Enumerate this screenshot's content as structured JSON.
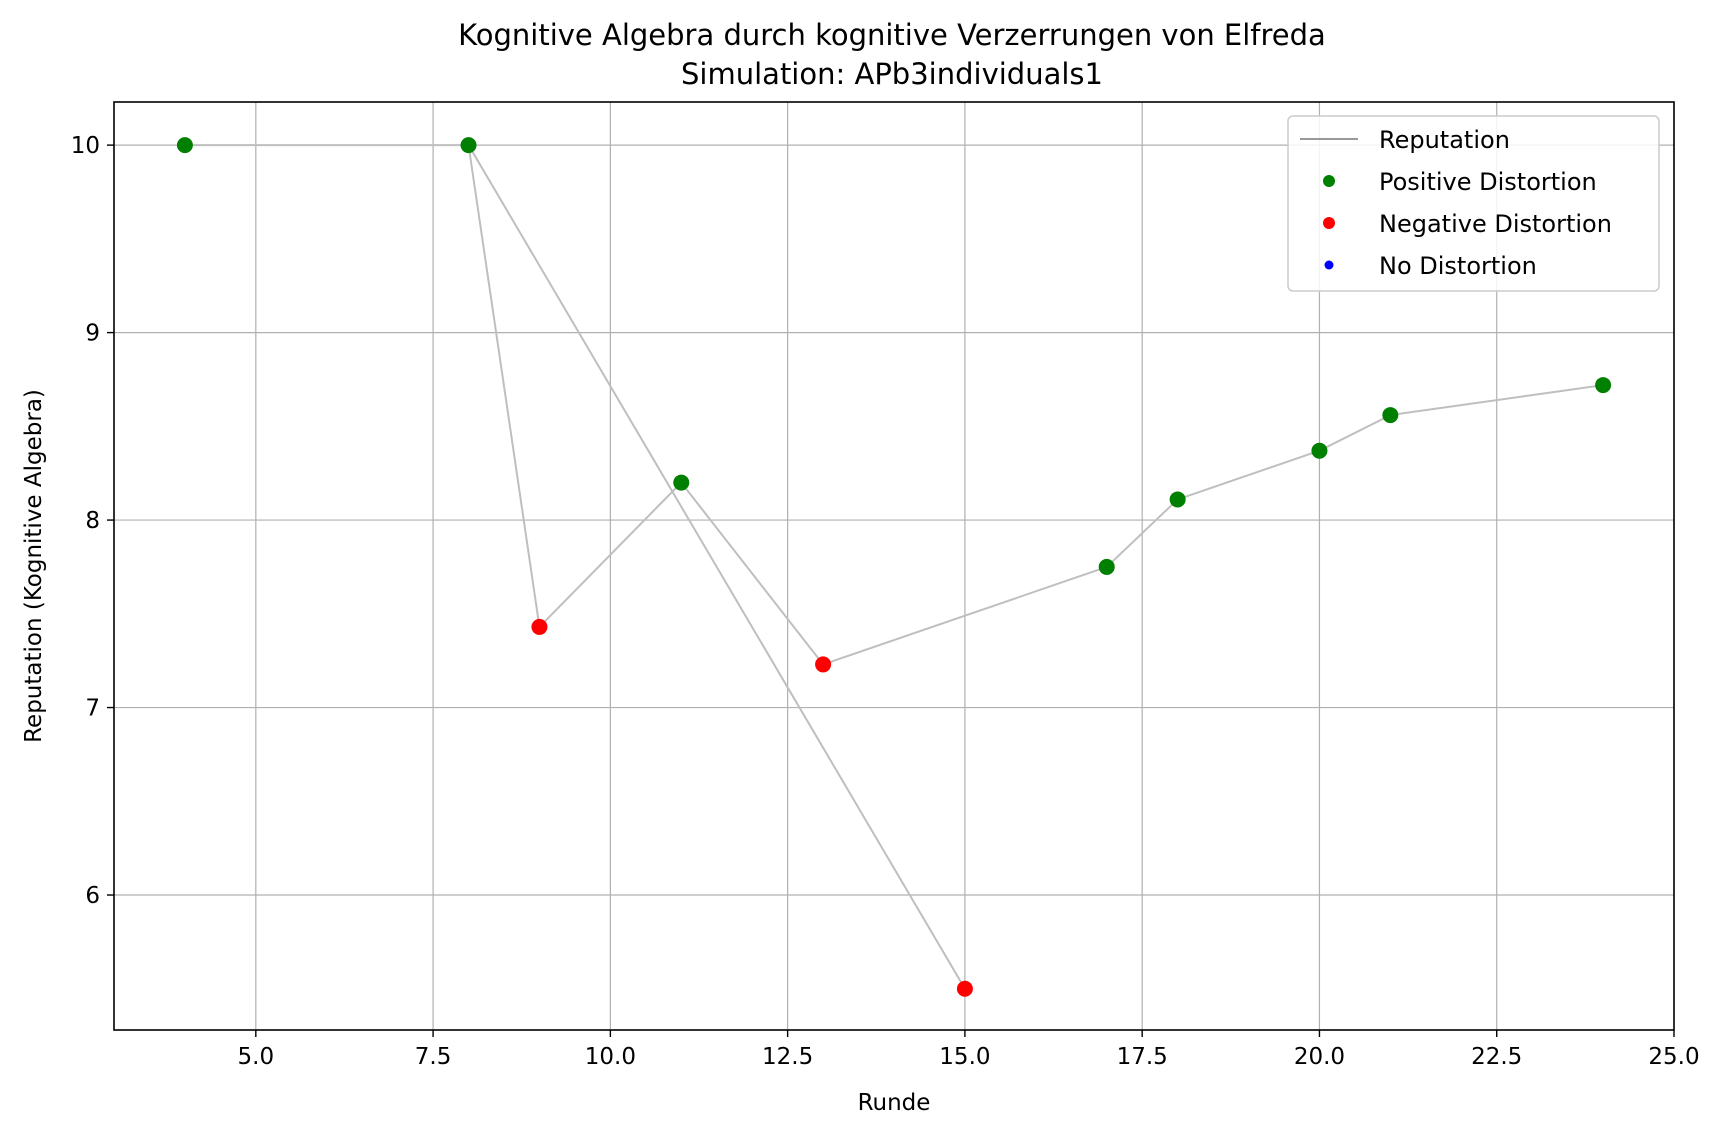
{
  "chart_data": {
    "type": "line",
    "title": "Kognitive Algebra durch kognitive Verzerrungen von Elfreda",
    "subtitle": "Simulation: APb3individuals1",
    "xlabel": "Runde",
    "ylabel": "Reputation (Kognitive Algebra)",
    "xlim": [
      3.0,
      25.0
    ],
    "ylim": [
      5.28,
      10.23
    ],
    "grid": true,
    "legend_position": "top-right",
    "x_ticks": [
      5.0,
      7.5,
      10.0,
      12.5,
      15.0,
      17.5,
      20.0,
      22.5,
      25.0
    ],
    "x_tick_labels": [
      "5.0",
      "7.5",
      "10.0",
      "12.5",
      "15.0",
      "17.5",
      "20.0",
      "22.5",
      "25.0"
    ],
    "y_ticks": [
      6,
      7,
      8,
      9,
      10
    ],
    "y_tick_labels": [
      "6",
      "7",
      "8",
      "9",
      "10"
    ],
    "series": [
      {
        "name": "Reputation",
        "kind": "line",
        "color": "#bfbfbf",
        "points": [
          {
            "x": 4,
            "y": 10.0
          },
          {
            "x": 8,
            "y": 10.0
          },
          {
            "x": 15,
            "y": 5.5
          },
          {
            "x": 8,
            "y": 10.0
          },
          {
            "x": 9,
            "y": 7.43
          },
          {
            "x": 11,
            "y": 8.2
          },
          {
            "x": 13,
            "y": 7.23
          },
          {
            "x": 17,
            "y": 7.75
          },
          {
            "x": 18,
            "y": 8.11
          },
          {
            "x": 20,
            "y": 8.37
          },
          {
            "x": 21,
            "y": 8.56
          },
          {
            "x": 24,
            "y": 8.72
          }
        ]
      },
      {
        "name": "Positive Distortion",
        "kind": "marker",
        "color": "#008000",
        "points": [
          {
            "x": 4,
            "y": 10.0
          },
          {
            "x": 8,
            "y": 10.0
          },
          {
            "x": 11,
            "y": 8.2
          },
          {
            "x": 17,
            "y": 7.75
          },
          {
            "x": 18,
            "y": 8.11
          },
          {
            "x": 20,
            "y": 8.37
          },
          {
            "x": 21,
            "y": 8.56
          },
          {
            "x": 24,
            "y": 8.72
          }
        ]
      },
      {
        "name": "Negative Distortion",
        "kind": "marker",
        "color": "#ff0000",
        "points": [
          {
            "x": 9,
            "y": 7.43
          },
          {
            "x": 13,
            "y": 7.23
          },
          {
            "x": 15,
            "y": 5.5
          }
        ]
      },
      {
        "name": "No Distortion",
        "kind": "marker",
        "color": "#0000ff",
        "points": []
      }
    ]
  }
}
